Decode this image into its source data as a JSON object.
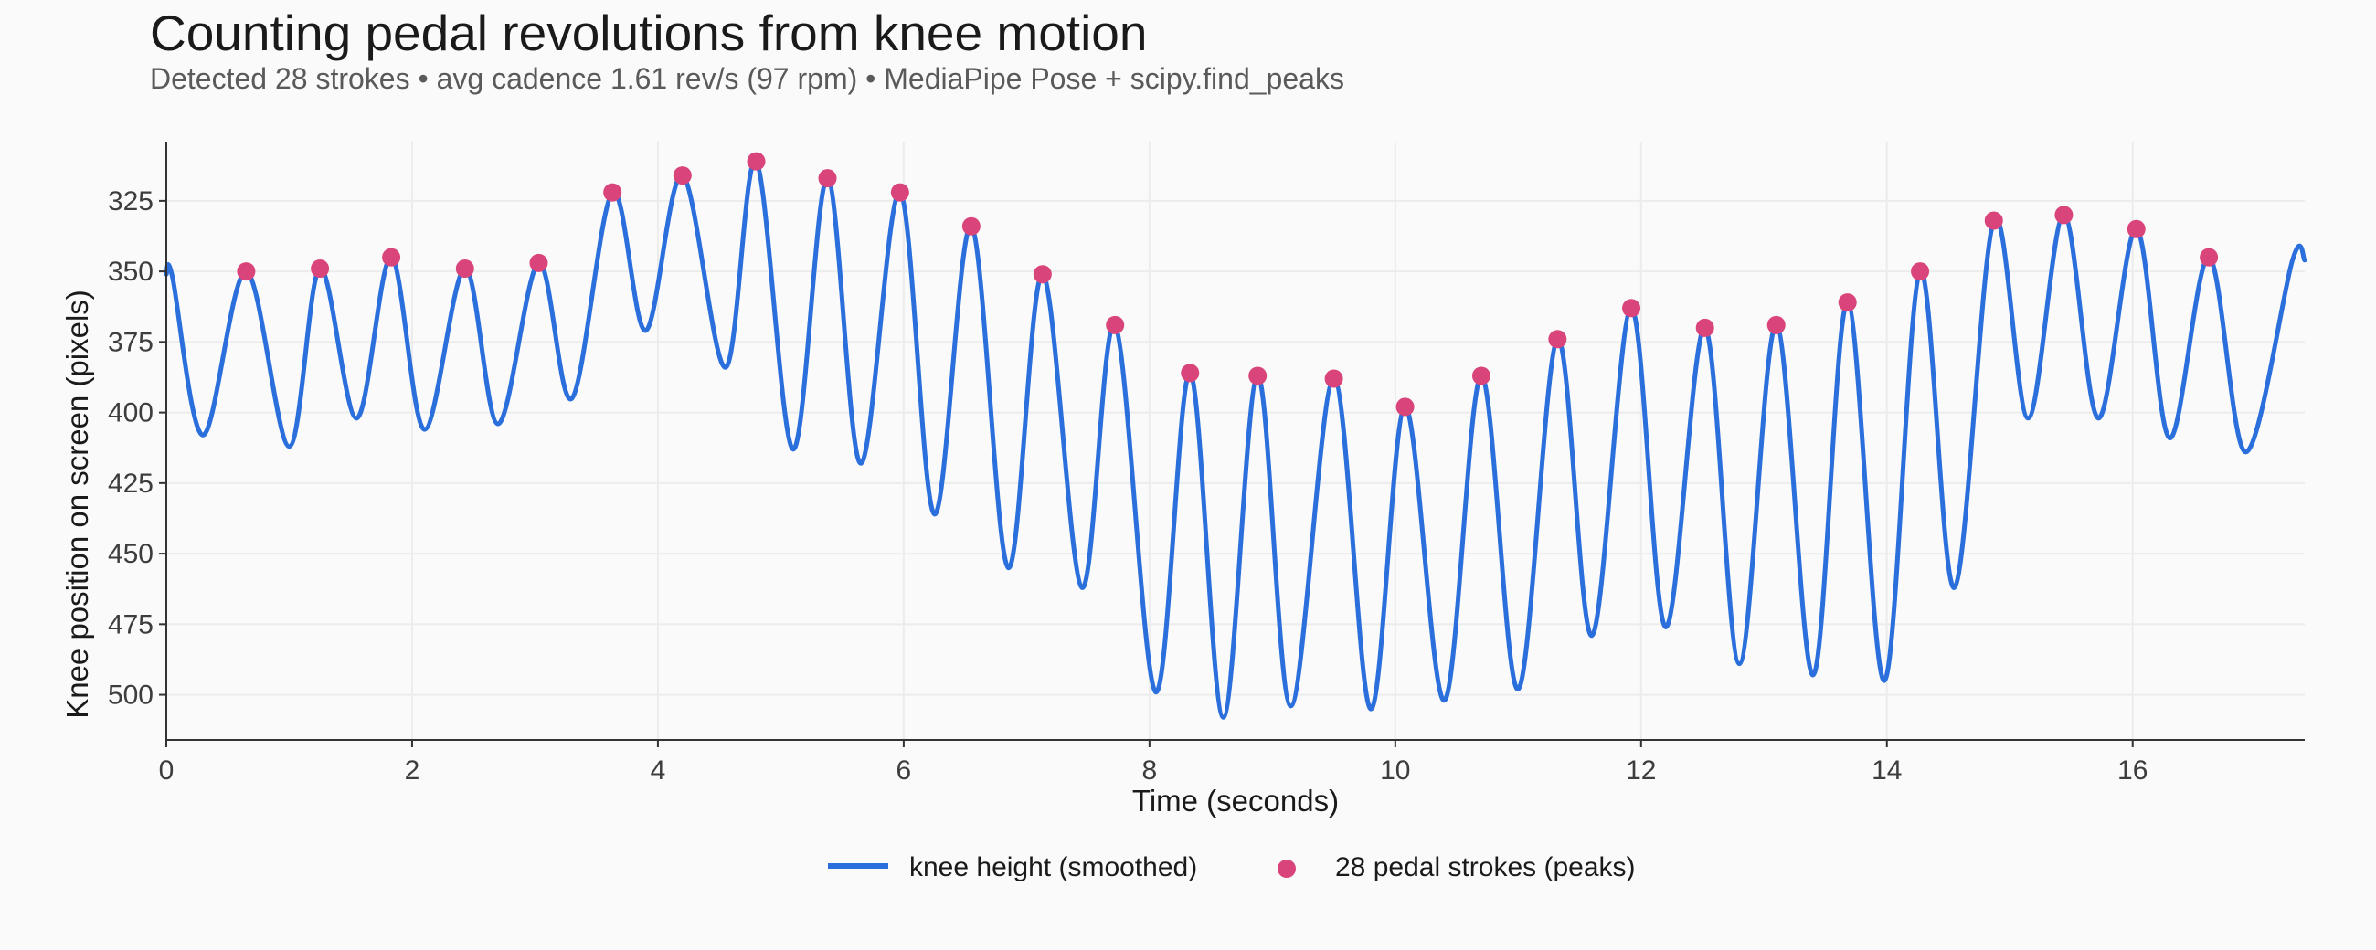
{
  "title": "Counting pedal revolutions from knee motion",
  "subtitle": "Detected 28 strokes • avg cadence 1.61 rev/s (97 rpm) • MediaPipe Pose + scipy.find_peaks",
  "colors": {
    "line": "#2a6fdb",
    "peak": "#d9447a",
    "grid": "#ececec",
    "axis": "#333333"
  },
  "chart_data": {
    "type": "line",
    "xlabel": "Time (seconds)",
    "ylabel": "Knee position on screen (pixels)",
    "xlim": [
      0,
      17.4
    ],
    "ylim": [
      516,
      304
    ],
    "y_inverted": true,
    "grid": true,
    "legend_position": "bottom-center",
    "x_ticks": [
      0,
      2,
      4,
      6,
      8,
      10,
      12,
      14,
      16
    ],
    "y_ticks": [
      325,
      350,
      375,
      400,
      425,
      450,
      475,
      500
    ],
    "series": [
      {
        "name": "knee height (smoothed)",
        "kind": "line",
        "x": [
          0.0,
          0.05,
          0.3,
          0.65,
          1.0,
          1.25,
          1.55,
          1.83,
          2.1,
          2.43,
          2.7,
          3.03,
          3.3,
          3.63,
          3.9,
          4.2,
          4.55,
          4.8,
          5.1,
          5.38,
          5.65,
          5.97,
          6.25,
          6.55,
          6.85,
          7.13,
          7.45,
          7.72,
          8.05,
          8.33,
          8.6,
          8.88,
          9.15,
          9.5,
          9.8,
          10.08,
          10.4,
          10.7,
          11.0,
          11.32,
          11.6,
          11.92,
          12.2,
          12.52,
          12.8,
          13.1,
          13.4,
          13.68,
          13.98,
          14.27,
          14.55,
          14.87,
          15.15,
          15.44,
          15.72,
          16.03,
          16.3,
          16.62,
          16.92,
          17.3,
          17.4
        ],
        "y": [
          351,
          352,
          408,
          350,
          412,
          349,
          402,
          345,
          406,
          349,
          404,
          347,
          395,
          322,
          371,
          316,
          384,
          311,
          413,
          317,
          418,
          322,
          436,
          334,
          455,
          351,
          462,
          369,
          499,
          386,
          508,
          387,
          504,
          388,
          505,
          398,
          502,
          387,
          498,
          374,
          479,
          363,
          476,
          370,
          489,
          369,
          493,
          361,
          495,
          350,
          462,
          332,
          402,
          330,
          402,
          335,
          409,
          345,
          414,
          346,
          346
        ]
      },
      {
        "name": "28 pedal strokes (peaks)",
        "kind": "scatter",
        "x": [
          0.65,
          1.25,
          1.83,
          2.43,
          3.03,
          3.63,
          4.2,
          4.8,
          5.38,
          5.97,
          6.55,
          7.13,
          7.72,
          8.33,
          8.88,
          9.5,
          10.08,
          10.7,
          11.32,
          11.92,
          12.52,
          13.1,
          13.68,
          14.27,
          14.87,
          15.44,
          16.03,
          16.62
        ],
        "y": [
          350,
          349,
          345,
          349,
          347,
          322,
          316,
          311,
          317,
          322,
          334,
          351,
          369,
          386,
          387,
          388,
          398,
          387,
          374,
          363,
          370,
          369,
          361,
          350,
          332,
          330,
          335,
          345
        ]
      }
    ]
  }
}
